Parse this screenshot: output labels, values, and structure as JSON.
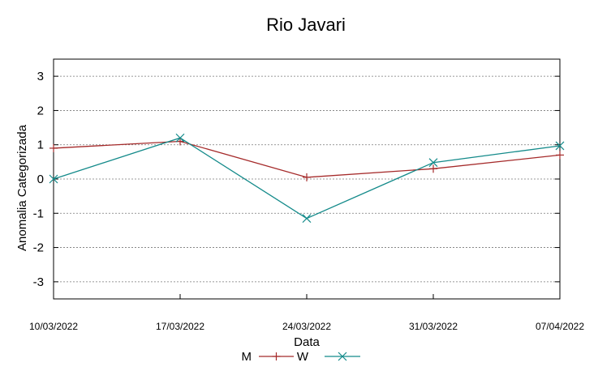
{
  "chart_data": {
    "type": "line",
    "title": "Rio Javari",
    "xlabel": "Data",
    "ylabel": "Anomalia Categorizada",
    "categories": [
      "10/03/2022",
      "17/03/2022",
      "24/03/2022",
      "31/03/2022",
      "07/04/2022"
    ],
    "ylim": [
      -3.5,
      3.5
    ],
    "yticks": [
      "-3",
      "-2",
      "-1",
      "0",
      "1",
      "2",
      "3"
    ],
    "grid": true,
    "legend_position": "bottom",
    "series": [
      {
        "name": "M",
        "color": "#a52a2a",
        "marker": "plus",
        "values": [
          0.9,
          1.1,
          0.05,
          0.3,
          0.7
        ]
      },
      {
        "name": "W",
        "color": "#138a8a",
        "marker": "cross",
        "values": [
          0.0,
          1.2,
          -1.15,
          0.48,
          0.97
        ]
      }
    ]
  }
}
